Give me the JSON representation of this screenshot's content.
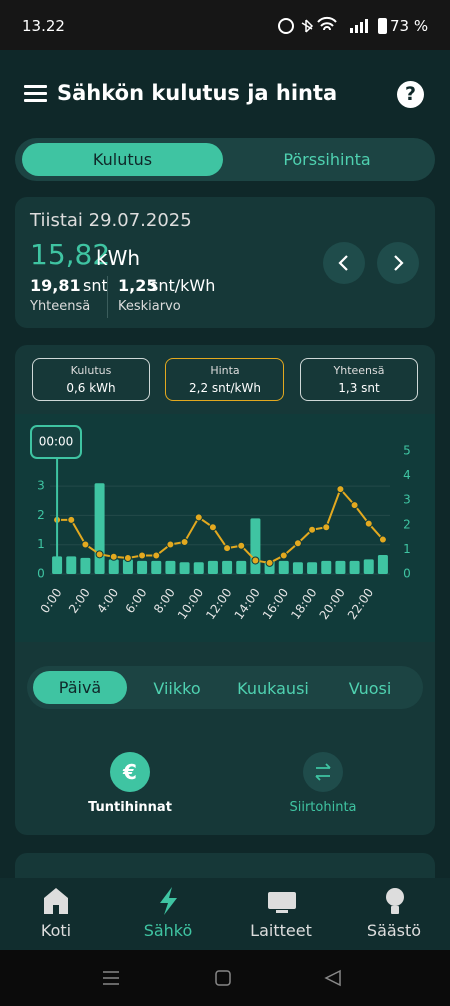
{
  "status_bar": {
    "time": "13.22",
    "battery": "73 %"
  },
  "header": {
    "title": "Sähkön kulutus ja hinta",
    "help": "?"
  },
  "tabs": [
    "Kulutus",
    "Pörssihinta"
  ],
  "summary": {
    "date": "Tiistai 29.07.2025",
    "energy": "15,82",
    "energy_unit": "kWh",
    "total": "19,81",
    "total_unit": "snt",
    "total_label": "Yhteensä",
    "average": "1,25",
    "average_unit": "snt/kWh",
    "average_label": "Keskiarvo"
  },
  "readouts": [
    {
      "label": "Kulutus",
      "value": "0,6 kWh"
    },
    {
      "label": "Hinta",
      "value": "2,2 snt/kWh"
    },
    {
      "label": "Yhteensä",
      "value": "1,3 snt"
    }
  ],
  "chart_data": {
    "type": "bar",
    "categories": [
      "0:00",
      null,
      "2:00",
      null,
      "4:00",
      null,
      "6:00",
      null,
      "8:00",
      null,
      "10:00",
      null,
      "12:00",
      null,
      "14:00",
      null,
      "16:00",
      null,
      "18:00",
      null,
      "20:00",
      null,
      "22:00",
      null
    ],
    "series": [
      {
        "color": "#3fc4a2",
        "values": [
          0.6,
          0.6,
          0.55,
          3.1,
          0.5,
          0.5,
          0.45,
          0.45,
          0.45,
          0.4,
          0.4,
          0.45,
          0.45,
          0.45,
          1.9,
          0.45,
          0.45,
          0.4,
          0.4,
          0.45,
          0.45,
          0.45,
          0.5,
          0.65
        ]
      },
      {
        "type": "line",
        "axis": "y2",
        "color": "#e3a91f",
        "values": [
          2.2,
          2.2,
          1.2,
          0.8,
          0.7,
          0.65,
          0.75,
          0.75,
          1.2,
          1.3,
          2.3,
          1.9,
          1.05,
          1.15,
          0.55,
          0.45,
          0.75,
          1.25,
          1.8,
          1.9,
          3.45,
          2.8,
          2.05,
          1.4
        ]
      }
    ],
    "ylim": [
      0,
      4.2
    ],
    "yticks": [
      0,
      1,
      2,
      3
    ],
    "y2lim": [
      0,
      5
    ],
    "y2ticks": [
      0,
      1,
      2,
      3,
      4,
      5
    ],
    "grid": true,
    "tooltip": "00:00"
  },
  "periods": [
    "Päivä",
    "Viikko",
    "Kuukausi",
    "Vuosi"
  ],
  "price_buttons": [
    {
      "icon": "€",
      "label": "Tuntihinnat"
    },
    {
      "label": "Siirtohinta"
    }
  ],
  "nav": [
    "Koti",
    "Sähkö",
    "Laitteet",
    "Säästö"
  ]
}
